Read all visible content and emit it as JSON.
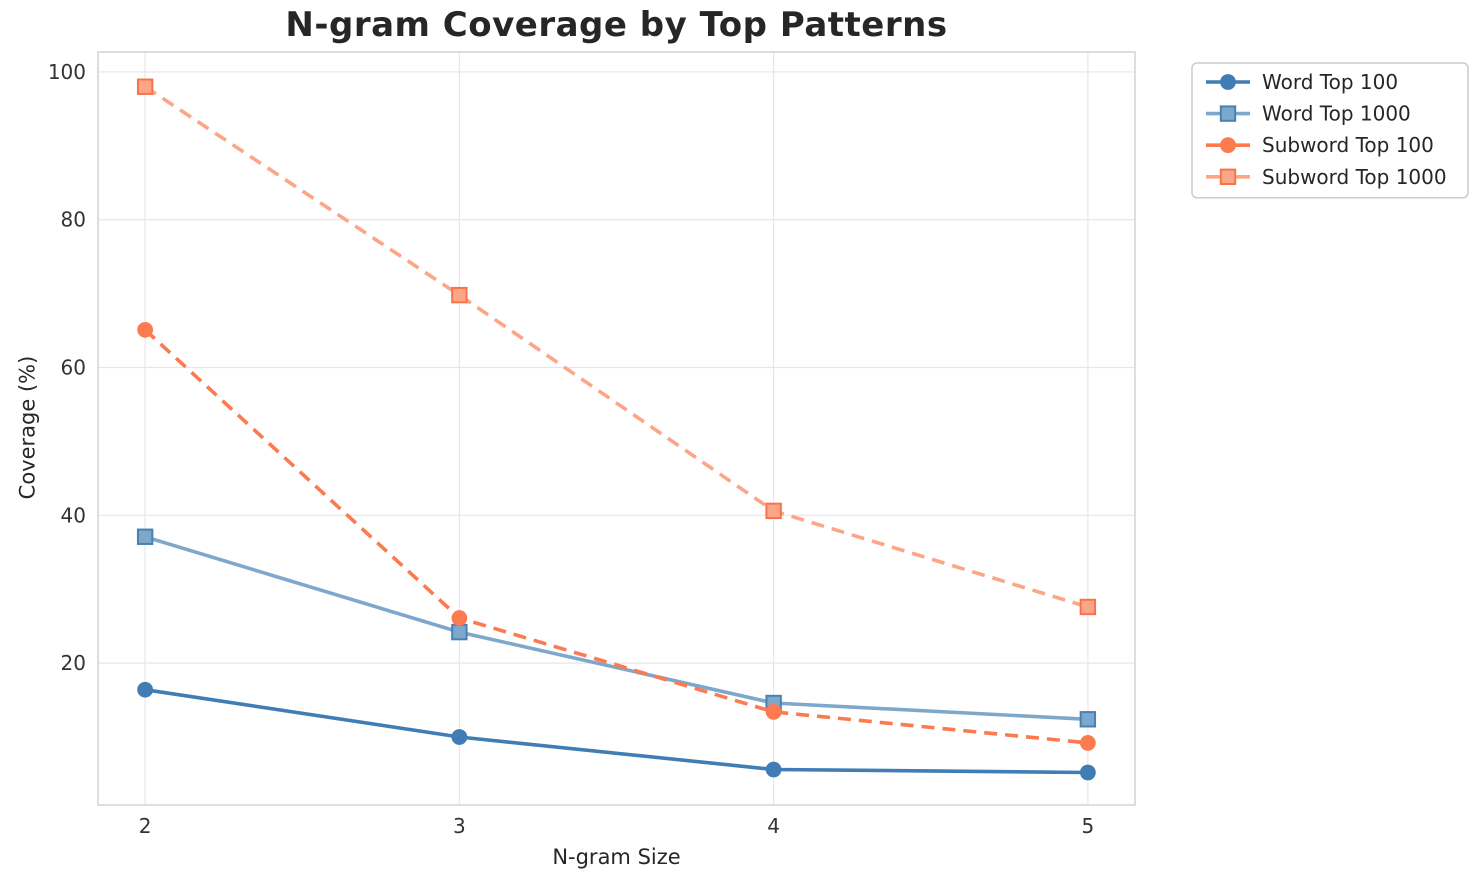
{
  "chart_data": {
    "type": "line",
    "title": "N-gram Coverage by Top Patterns",
    "xlabel": "N-gram Size",
    "ylabel": "Coverage (%)",
    "x": [
      2,
      3,
      4,
      5
    ],
    "xticks": [
      2,
      3,
      4,
      5
    ],
    "yticks": [
      20,
      40,
      60,
      80,
      100
    ],
    "xlim": [
      1.85,
      5.15
    ],
    "ylim": [
      0.8,
      102.7
    ],
    "grid": true,
    "legend_position": "outside-upper-right",
    "series": [
      {
        "name": "Word Top 100",
        "values": [
          16.4,
          10.0,
          5.6,
          5.2
        ],
        "color": "#3f7db4",
        "edge": "#3f7db4",
        "linestyle": "solid",
        "marker": "circle"
      },
      {
        "name": "Word Top 1000",
        "values": [
          37.1,
          24.2,
          14.6,
          12.4
        ],
        "color": "#7ea8cb",
        "edge": "#4682b4",
        "linestyle": "solid",
        "marker": "square"
      },
      {
        "name": "Subword Top 100",
        "values": [
          65.1,
          26.1,
          13.4,
          9.2
        ],
        "color": "#fb7a4f",
        "edge": "#fb7a4f",
        "linestyle": "dashed",
        "marker": "circle"
      },
      {
        "name": "Subword Top 1000",
        "values": [
          98.0,
          69.8,
          40.6,
          27.6
        ],
        "color": "#fda687",
        "edge": "#f7744a",
        "linestyle": "dashed",
        "marker": "square"
      }
    ],
    "style": {
      "grid_color": "#e7e7e7",
      "spine_color": "#d4d4d4",
      "tick_color": "#333333",
      "legend_border": "#cccccc",
      "legend_bg": "#ffffff"
    }
  }
}
